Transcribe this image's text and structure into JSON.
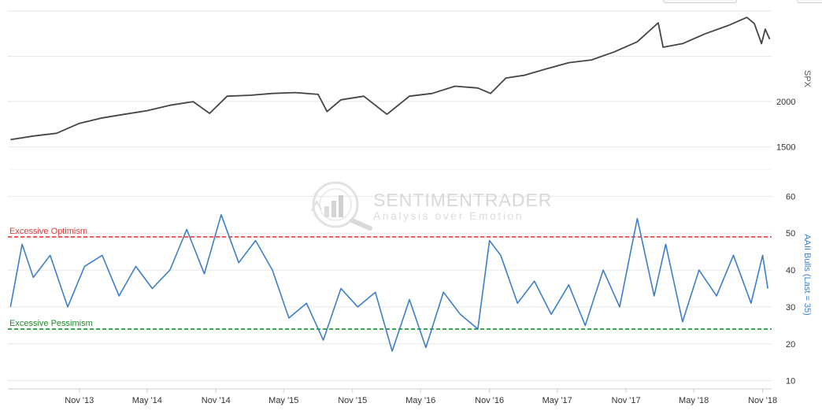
{
  "chart_data": [
    {
      "type": "line",
      "panel": "top",
      "ylabel": "SPX",
      "yticks": [
        1500,
        2000
      ],
      "ylim": [
        1340,
        3000
      ],
      "color": "#444444",
      "x": [
        "2013-05-01",
        "2013-07-01",
        "2013-09-01",
        "2013-11-01",
        "2014-01-01",
        "2014-03-01",
        "2014-05-01",
        "2014-07-01",
        "2014-09-01",
        "2014-10-15",
        "2014-12-01",
        "2015-02-01",
        "2015-04-01",
        "2015-06-01",
        "2015-08-01",
        "2015-08-25",
        "2015-10-01",
        "2015-12-01",
        "2016-02-01",
        "2016-04-01",
        "2016-06-01",
        "2016-08-01",
        "2016-10-01",
        "2016-11-04",
        "2016-12-15",
        "2017-02-01",
        "2017-04-01",
        "2017-06-01",
        "2017-08-01",
        "2017-10-01",
        "2017-12-01",
        "2018-01-26",
        "2018-02-08",
        "2018-04-01",
        "2018-06-01",
        "2018-08-01",
        "2018-09-20",
        "2018-10-10",
        "2018-10-29",
        "2018-11-08",
        "2018-11-20"
      ],
      "values": [
        1580,
        1620,
        1650,
        1760,
        1820,
        1860,
        1900,
        1960,
        2000,
        1870,
        2060,
        2070,
        2090,
        2100,
        2080,
        1890,
        2020,
        2060,
        1860,
        2060,
        2090,
        2170,
        2150,
        2090,
        2260,
        2290,
        2360,
        2430,
        2460,
        2550,
        2660,
        2870,
        2600,
        2640,
        2750,
        2840,
        2930,
        2860,
        2640,
        2800,
        2690
      ]
    },
    {
      "type": "line",
      "panel": "bottom",
      "ylabel": "AAII Bulls (Last = 35)",
      "yticks": [
        10,
        20,
        30,
        40,
        50,
        60
      ],
      "ylim": [
        8,
        62
      ],
      "color": "#3a7fc8",
      "x": [
        "2013-05-01",
        "2013-06-01",
        "2013-07-01",
        "2013-08-15",
        "2013-10-01",
        "2013-11-15",
        "2014-01-01",
        "2014-02-15",
        "2014-04-01",
        "2014-05-15",
        "2014-07-01",
        "2014-08-15",
        "2014-10-01",
        "2014-11-15",
        "2015-01-01",
        "2015-02-15",
        "2015-04-01",
        "2015-05-15",
        "2015-07-01",
        "2015-08-15",
        "2015-10-01",
        "2015-11-15",
        "2016-01-01",
        "2016-02-15",
        "2016-04-01",
        "2016-05-15",
        "2016-07-01",
        "2016-08-15",
        "2016-10-01",
        "2016-11-01",
        "2016-12-01",
        "2017-01-15",
        "2017-03-01",
        "2017-04-15",
        "2017-06-01",
        "2017-07-15",
        "2017-09-01",
        "2017-10-15",
        "2017-12-01",
        "2018-01-15",
        "2018-02-15",
        "2018-04-01",
        "2018-05-15",
        "2018-07-01",
        "2018-08-15",
        "2018-10-01",
        "2018-11-01",
        "2018-11-15"
      ],
      "values": [
        30,
        47,
        38,
        44,
        30,
        41,
        44,
        33,
        41,
        35,
        40,
        51,
        39,
        55,
        42,
        48,
        40,
        27,
        31,
        21,
        35,
        30,
        34,
        18,
        32,
        19,
        34,
        28,
        24,
        48,
        44,
        31,
        37,
        28,
        36,
        25,
        40,
        30,
        54,
        33,
        47,
        26,
        40,
        33,
        44,
        31,
        44,
        35
      ]
    }
  ],
  "time_axis": {
    "labels": [
      "Nov '13",
      "May '14",
      "Nov '14",
      "May '15",
      "Nov '15",
      "May '16",
      "Nov '16",
      "May '17",
      "Nov '17",
      "May '18",
      "Nov '18"
    ],
    "dates": [
      "2013-11-01",
      "2014-05-01",
      "2014-11-01",
      "2015-05-01",
      "2015-11-01",
      "2016-05-01",
      "2016-11-01",
      "2017-05-01",
      "2017-11-01",
      "2018-05-01",
      "2018-11-01"
    ],
    "start": "2013-04-24",
    "end": "2018-11-25"
  },
  "reference_lines": [
    {
      "label": "Excessive Optimism",
      "value": 49,
      "color": "#e23b3b"
    },
    {
      "label": "Excessive Pessimism",
      "value": 24,
      "color": "#1f8a2a"
    }
  ],
  "watermark": {
    "title": "SENTIMENTRADER",
    "subtitle": "Analysis over Emotion",
    "logo": "magnifier-bar-chart-icon"
  },
  "colors": {
    "spx_line": "#444444",
    "bulls_line": "#3a7fc8",
    "grid": "#e6e6e6",
    "optimism": "#e23b3b",
    "pessimism": "#1f8a2a",
    "axis_title": "#3a7fc8"
  }
}
